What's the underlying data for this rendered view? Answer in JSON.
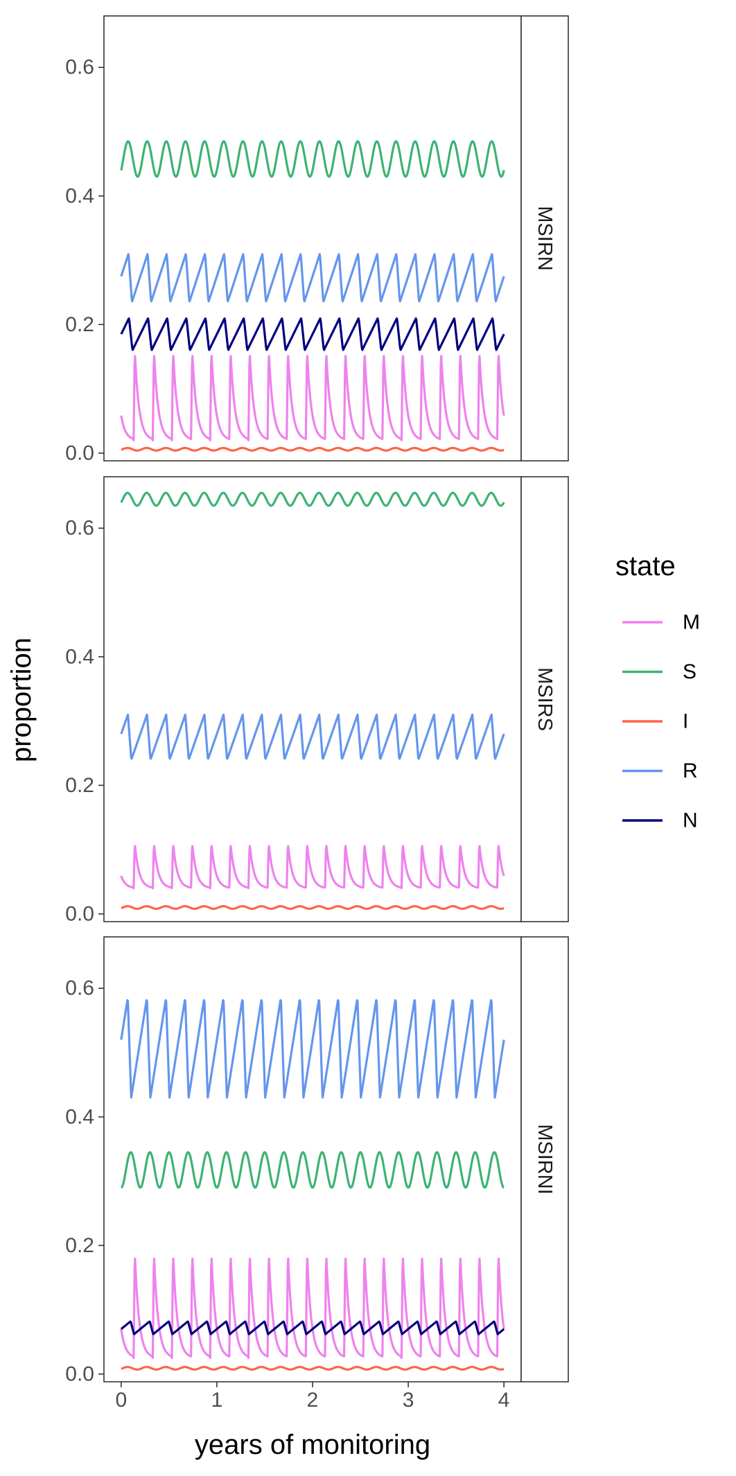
{
  "chart_data": {
    "type": "line",
    "xlabel": "years of monitoring",
    "ylabel": "proportion",
    "xlim": [
      0,
      4
    ],
    "ylim": [
      0,
      0.65
    ],
    "x_ticks": [
      0,
      1,
      2,
      3,
      4
    ],
    "x_tick_labels": [
      "0",
      "1",
      "2",
      "3",
      "4"
    ],
    "y_ticks": [
      0.0,
      0.2,
      0.4,
      0.6
    ],
    "y_tick_labels": [
      "0.0",
      "0.2",
      "0.4",
      "0.6"
    ],
    "grid": false,
    "legend": {
      "title": "state",
      "position": "right",
      "entries": [
        "M",
        "S",
        "I",
        "R",
        "N"
      ]
    },
    "colors": {
      "M": "#EE82EE",
      "S": "#3CB371",
      "I": "#FF6347",
      "R": "#6495ED",
      "N": "#000080"
    },
    "cycles_per_year": 5,
    "panels": [
      {
        "label": "MSIRN",
        "series": [
          {
            "name": "S",
            "min": 0.43,
            "max": 0.485,
            "start": 0.44,
            "shape": "sine"
          },
          {
            "name": "R",
            "min": 0.235,
            "max": 0.31,
            "start": 0.275,
            "shape": "sawtooth"
          },
          {
            "name": "N",
            "min": 0.16,
            "max": 0.21,
            "start": 0.185,
            "shape": "sawtooth"
          },
          {
            "name": "M",
            "min": 0.02,
            "max": 0.16,
            "start": 0.09,
            "shape": "decay"
          },
          {
            "name": "I",
            "min": 0.004,
            "max": 0.008,
            "start": 0.005,
            "shape": "sine"
          }
        ]
      },
      {
        "label": "MSIRS",
        "series": [
          {
            "name": "S",
            "min": 0.635,
            "max": 0.655,
            "start": 0.64,
            "shape": "sine"
          },
          {
            "name": "R",
            "min": 0.24,
            "max": 0.31,
            "start": 0.28,
            "shape": "sawtooth"
          },
          {
            "name": "M",
            "min": 0.04,
            "max": 0.11,
            "start": 0.075,
            "shape": "decay"
          },
          {
            "name": "I",
            "min": 0.008,
            "max": 0.012,
            "start": 0.009,
            "shape": "sine"
          }
        ]
      },
      {
        "label": "MSIRNI",
        "series": [
          {
            "name": "R",
            "min": 0.43,
            "max": 0.585,
            "start": 0.52,
            "shape": "sawtooth"
          },
          {
            "name": "S",
            "min": 0.29,
            "max": 0.345,
            "start": 0.29,
            "shape": "sine"
          },
          {
            "name": "M",
            "min": 0.025,
            "max": 0.19,
            "start": 0.11,
            "shape": "decay"
          },
          {
            "name": "N",
            "min": 0.062,
            "max": 0.082,
            "start": 0.07,
            "shape": "sawtooth"
          },
          {
            "name": "I",
            "min": 0.007,
            "max": 0.011,
            "start": 0.008,
            "shape": "sine"
          }
        ]
      }
    ]
  }
}
